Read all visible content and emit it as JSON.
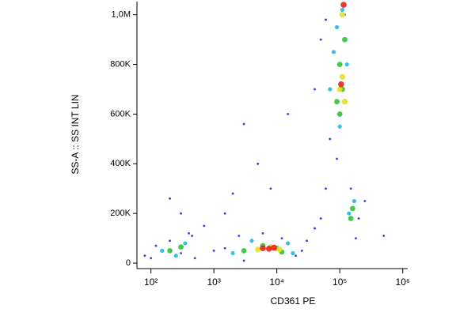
{
  "chart_data": {
    "type": "scatter",
    "x_label": "CD361 PE",
    "y_label": "SS-A :: SS INT LIN",
    "x_log": true,
    "xlim": [
      60,
      1200000
    ],
    "xticks": [
      {
        "value": 100,
        "label": "10²"
      },
      {
        "value": 1000,
        "label": "10³"
      },
      {
        "value": 10000,
        "label": "10⁴"
      },
      {
        "value": 100000,
        "label": "10⁵"
      },
      {
        "value": 1000000,
        "label": "10⁶"
      }
    ],
    "ylim": [
      -22000,
      1053000
    ],
    "yticks": [
      0,
      {
        "value": 200000,
        "label": "200K"
      },
      {
        "value": 400000,
        "label": "400K"
      },
      {
        "value": 600000,
        "label": "600K"
      },
      {
        "value": 800000,
        "label": "800K"
      },
      {
        "value": 1000000,
        "label": "1,0M"
      }
    ],
    "series": [
      {
        "color": "#2323d8",
        "x": [
          80,
          120,
          200,
          300,
          450,
          500,
          700,
          1500,
          3000,
          1500,
          2500,
          20000,
          30000,
          40000,
          5000,
          8000,
          15000,
          3000,
          2000,
          50000,
          60000,
          40000,
          50000,
          60000,
          70000,
          200000,
          250000,
          180000,
          500000,
          150000,
          120000,
          90000,
          100,
          400,
          12000,
          25000,
          6000,
          1000,
          300,
          200
        ],
        "values": [
          30000,
          70000,
          90000,
          40000,
          110000,
          20000,
          150000,
          200000,
          10000,
          60000,
          110000,
          30000,
          90000,
          140000,
          400000,
          300000,
          600000,
          560000,
          280000,
          180000,
          300000,
          700000,
          900000,
          980000,
          500000,
          180000,
          250000,
          100000,
          110000,
          300000,
          1000000,
          420000,
          20000,
          120000,
          100000,
          50000,
          120000,
          50000,
          200000,
          260000
        ]
      },
      {
        "color": "#1fb8e8",
        "x": [
          150,
          350,
          250,
          2000,
          4000,
          15000,
          18000,
          70000,
          80000,
          90000,
          130000,
          100000,
          140000,
          170000,
          110000
        ],
        "values": [
          50000,
          80000,
          30000,
          40000,
          90000,
          80000,
          40000,
          700000,
          850000,
          950000,
          800000,
          550000,
          200000,
          250000,
          1020000
        ]
      },
      {
        "color": "#2fc43a",
        "x": [
          200,
          300,
          3000,
          6000,
          10000,
          12000,
          90000,
          100000,
          110000,
          120000,
          150000,
          160000,
          100000
        ],
        "values": [
          50000,
          65000,
          50000,
          70000,
          60000,
          45000,
          650000,
          800000,
          700000,
          900000,
          180000,
          220000,
          600000
        ]
      },
      {
        "color": "#e6e01e",
        "x": [
          5000,
          8000,
          11000,
          100000,
          110000,
          120000,
          110000
        ],
        "values": [
          55000,
          65000,
          55000,
          700000,
          750000,
          650000,
          1000000
        ]
      },
      {
        "color": "#e8241e",
        "x": [
          6000,
          7500,
          9000,
          105000,
          115000
        ],
        "values": [
          60000,
          58000,
          62000,
          720000,
          1040000
        ]
      }
    ]
  }
}
